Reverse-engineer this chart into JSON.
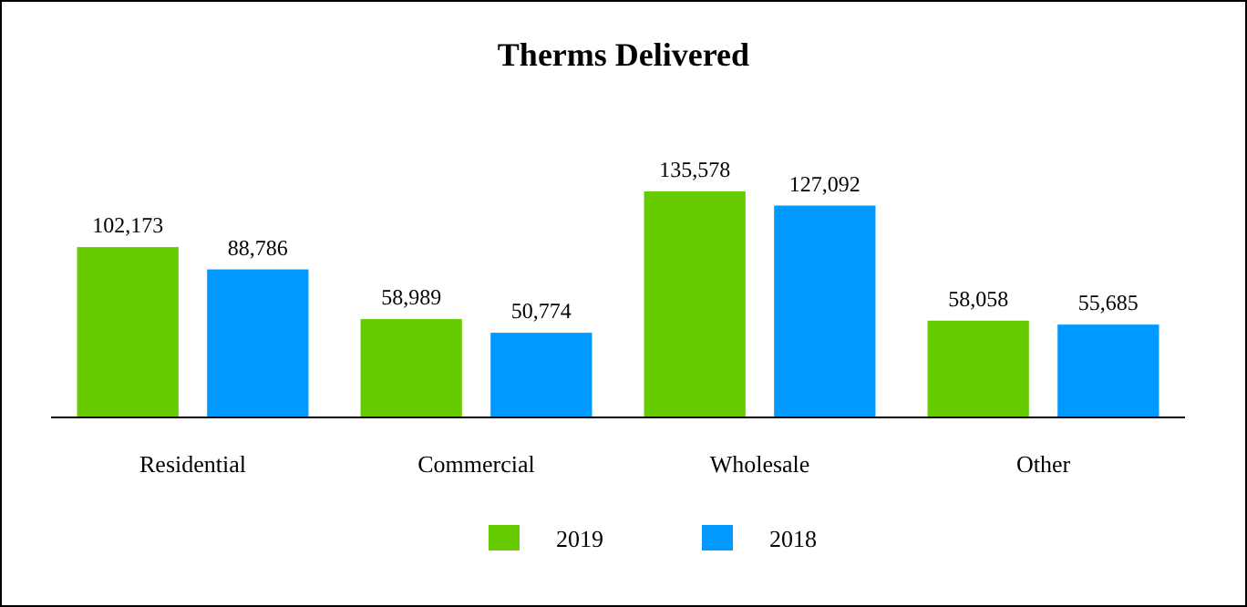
{
  "chart_data": {
    "type": "bar",
    "title": "Therms Delivered",
    "categories": [
      "Residential",
      "Commercial",
      "Wholesale",
      "Other"
    ],
    "series": [
      {
        "name": "2019",
        "color": "#66cc00",
        "values": [
          102173,
          58989,
          135578,
          58058
        ],
        "value_labels": [
          "102,173",
          "58,989",
          "135,578",
          "58,058"
        ]
      },
      {
        "name": "2018",
        "color": "#0099ff",
        "values": [
          88786,
          50774,
          127092,
          55685
        ],
        "value_labels": [
          "88,786",
          "50,774",
          "127,092",
          "55,685"
        ]
      }
    ],
    "tick_labels": "x",
    "legend": "bottom"
  }
}
